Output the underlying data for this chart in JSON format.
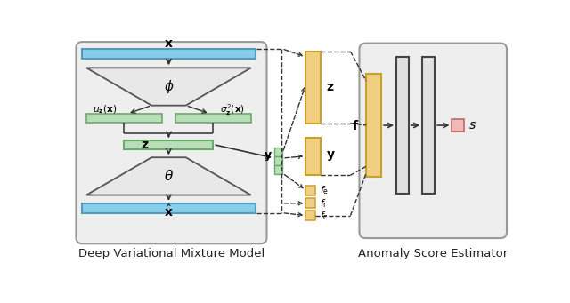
{
  "bg_color": "#ffffff",
  "panel_bg": "#eeeeee",
  "panel_ec": "#999999",
  "cyan_fc": "#87CEEB",
  "cyan_ec": "#5599bb",
  "green_fc": "#b8ddb8",
  "green_ec": "#6aaa6a",
  "yellow_fc": "#f0d080",
  "yellow_ec": "#c8a030",
  "gray_fc": "#e0e0e0",
  "gray_ec": "#444444",
  "trap_fc": "#e8e8e8",
  "trap_ec": "#555555",
  "pink_fc": "#f0b8b8",
  "pink_ec": "#c07070",
  "arrow_c": "#333333",
  "dash_c": "#333333",
  "label_c": "#222222",
  "panel1_label": "Deep Variational Mixture Model",
  "panel2_label": "Anomaly Score Estimator"
}
